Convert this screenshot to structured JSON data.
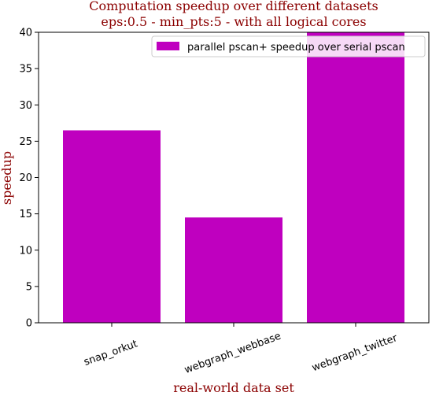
{
  "chart_data": {
    "type": "bar",
    "title_line1": "Computation speedup over different datasets",
    "title_line2": "eps:0.5 - min_pts:5 - with all logical cores",
    "xlabel": "real-world data set",
    "ylabel": "speedup",
    "categories": [
      "snap_orkut",
      "webgraph_webbase",
      "webgraph_twitter"
    ],
    "series": [
      {
        "name": "parallel pscan+ speedup over serial pscan",
        "values": [
          26.5,
          14.5,
          40.0
        ]
      }
    ],
    "ylim": [
      0,
      40
    ],
    "yticks": [
      0,
      5,
      10,
      15,
      20,
      25,
      30,
      35,
      40
    ],
    "legend_position": "top-right",
    "grid": false,
    "colors": {
      "bar": "#bf00bf",
      "title": "#8b0000",
      "axis_label": "#8b0000"
    }
  }
}
